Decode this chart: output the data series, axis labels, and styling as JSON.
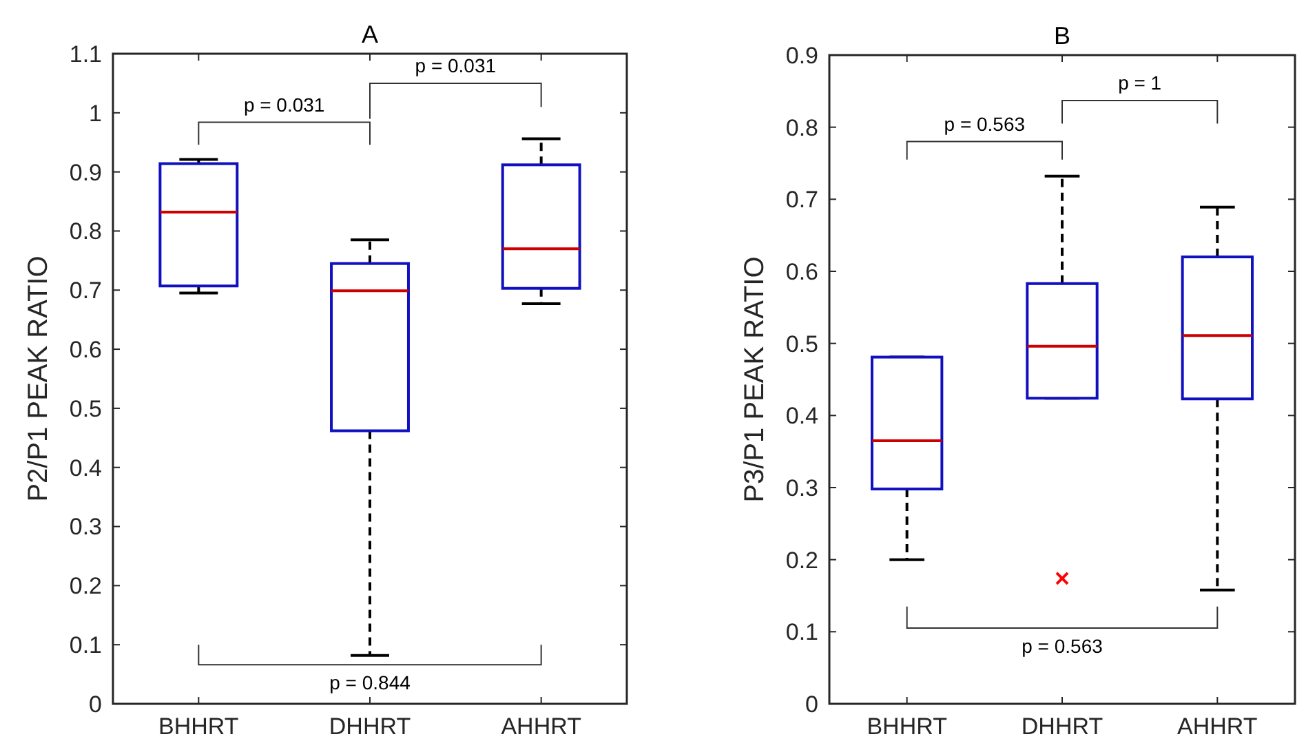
{
  "chart_data": [
    {
      "type": "box",
      "title": "A",
      "ylabel": "P2/P1  PEAK  RATIO",
      "categories": [
        "BHHRT",
        "DHHRT",
        "AHHRT"
      ],
      "color": "#1010c0",
      "boxes": [
        {
          "low": 0.695,
          "q1": 0.707,
          "median": 0.832,
          "q3": 0.914,
          "high": 0.921
        },
        {
          "low": 0.082,
          "q1": 0.462,
          "median": 0.699,
          "q3": 0.745,
          "high": 0.785
        },
        {
          "low": 0.677,
          "q1": 0.703,
          "median": 0.77,
          "q3": 0.912,
          "high": 0.956
        }
      ],
      "ylim": [
        0,
        1.1
      ],
      "yticks": [
        0,
        0.1,
        0.2,
        0.3,
        0.4,
        0.5,
        0.6,
        0.7,
        0.8,
        0.9,
        1,
        1.1
      ],
      "annotations": [
        "p = 0.031",
        "p = 0.031",
        "p = 0.844"
      ]
    },
    {
      "type": "box",
      "title": "B",
      "ylabel": "P3/P1  PEAK  RATIO",
      "categories": [
        "BHHRT",
        "DHHRT",
        "AHHRT"
      ],
      "color": "#1010c0",
      "boxes": [
        {
          "low": 0.2,
          "q1": 0.298,
          "median": 0.365,
          "q3": 0.481,
          "high": 0.481
        },
        {
          "low": 0.424,
          "q1": 0.424,
          "median": 0.496,
          "q3": 0.583,
          "high": 0.732,
          "outliers": [
            0.174
          ]
        },
        {
          "low": 0.158,
          "q1": 0.423,
          "median": 0.511,
          "q3": 0.62,
          "high": 0.689
        }
      ],
      "ylim": [
        0,
        0.9
      ],
      "yticks": [
        0,
        0.1,
        0.2,
        0.3,
        0.4,
        0.5,
        0.6,
        0.7,
        0.8,
        0.9
      ],
      "annotations": [
        "p = 0.563",
        "p = 1",
        "p = 0.563"
      ]
    }
  ]
}
